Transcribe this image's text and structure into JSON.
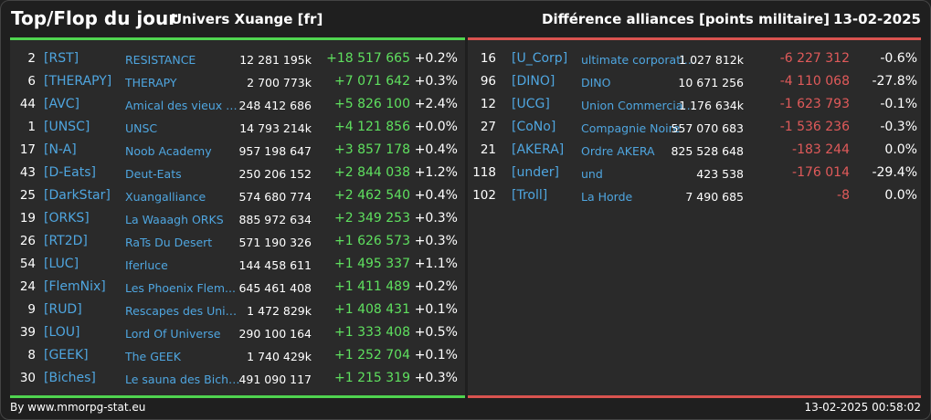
{
  "header": {
    "title": "Top/Flop du jour",
    "universe": "Univers Xuange [fr]",
    "metric": "Différence alliances [points militaire]",
    "date": "13-02-2025"
  },
  "colors": {
    "positive": "#5fe05f",
    "negative": "#e05a5a",
    "tag": "#4fa6e0",
    "top_bar": "#4fd44f",
    "flop_bar": "#d9534f"
  },
  "top": [
    {
      "rank": "2",
      "tag": "[RST]",
      "name": "RESISTANCE",
      "points": "12 281 195k",
      "diff": "+18 517 665",
      "pct": "+0.2%"
    },
    {
      "rank": "6",
      "tag": "[THERAPY]",
      "name": "THERAPY",
      "points": "2 700 773k",
      "diff": "+7 071 642",
      "pct": "+0.3%"
    },
    {
      "rank": "44",
      "tag": "[AVC]",
      "name": "Amical des vieux co...",
      "points": "248 412 686",
      "diff": "+5 826 100",
      "pct": "+2.4%"
    },
    {
      "rank": "1",
      "tag": "[UNSC]",
      "name": "UNSC",
      "points": "14 793 214k",
      "diff": "+4 121 856",
      "pct": "+0.0%"
    },
    {
      "rank": "17",
      "tag": "[N-A]",
      "name": "Noob Academy",
      "points": "957 198 647",
      "diff": "+3 857 178",
      "pct": "+0.4%"
    },
    {
      "rank": "43",
      "tag": "[D-Eats]",
      "name": "Deut-Eats",
      "points": "250 206 152",
      "diff": "+2 844 038",
      "pct": "+1.2%"
    },
    {
      "rank": "25",
      "tag": "[DarkStar]",
      "name": "Xuangalliance",
      "points": "574 680 774",
      "diff": "+2 462 540",
      "pct": "+0.4%"
    },
    {
      "rank": "19",
      "tag": "[ORKS]",
      "name": "La Waaagh ORKS",
      "points": "885 972 634",
      "diff": "+2 349 253",
      "pct": "+0.3%"
    },
    {
      "rank": "26",
      "tag": "[RT2D]",
      "name": "RaTs Du Desert",
      "points": "571 190 326",
      "diff": "+1 626 573",
      "pct": "+0.3%"
    },
    {
      "rank": "54",
      "tag": "[LUC]",
      "name": "Iferluce",
      "points": "144 458 611",
      "diff": "+1 495 337",
      "pct": "+1.1%"
    },
    {
      "rank": "24",
      "tag": "[FlemNix]",
      "name": "Les Phoenix Flem...",
      "points": "645 461 408",
      "diff": "+1 411 489",
      "pct": "+0.2%"
    },
    {
      "rank": "9",
      "tag": "[RUD]",
      "name": "Rescapes des Univ...",
      "points": "1 472 829k",
      "diff": "+1 408 431",
      "pct": "+0.1%"
    },
    {
      "rank": "39",
      "tag": "[LOU]",
      "name": "Lord Of Universe",
      "points": "290 100 164",
      "diff": "+1 333 408",
      "pct": "+0.5%"
    },
    {
      "rank": "8",
      "tag": "[GEEK]",
      "name": "The GEEK",
      "points": "1 740 429k",
      "diff": "+1 252 704",
      "pct": "+0.1%"
    },
    {
      "rank": "30",
      "tag": "[Biches]",
      "name": "Le sauna des Biche...",
      "points": "491 090 117",
      "diff": "+1 215 319",
      "pct": "+0.3%"
    }
  ],
  "flop": [
    {
      "rank": "16",
      "tag": "[U_Corp]",
      "name": "ultimate corporation",
      "points": "1 027 812k",
      "diff": "-6 227 312",
      "pct": "-0.6%"
    },
    {
      "rank": "96",
      "tag": "[DINO]",
      "name": "DINO",
      "points": "10 671 256",
      "diff": "-4 110 068",
      "pct": "-27.8%"
    },
    {
      "rank": "12",
      "tag": "[UCG]",
      "name": "Union Commerciale...",
      "points": "1 176 634k",
      "diff": "-1 623 793",
      "pct": "-0.1%"
    },
    {
      "rank": "27",
      "tag": "[CoNo]",
      "name": "Compagnie Noire",
      "points": "557 070 683",
      "diff": "-1 536 236",
      "pct": "-0.3%"
    },
    {
      "rank": "21",
      "tag": "[AKERA]",
      "name": "Ordre AKERA",
      "points": "825 528 648",
      "diff": "-183 244",
      "pct": "0.0%"
    },
    {
      "rank": "118",
      "tag": "[under]",
      "name": "und",
      "points": "423 538",
      "diff": "-176 014",
      "pct": "-29.4%"
    },
    {
      "rank": "102",
      "tag": "[Troll]",
      "name": "La Horde",
      "points": "7 490 685",
      "diff": "-8",
      "pct": "0.0%"
    }
  ],
  "footer": {
    "credit": "By www.mmorpg-stat.eu",
    "timestamp": "13-02-2025 00:58:02"
  }
}
